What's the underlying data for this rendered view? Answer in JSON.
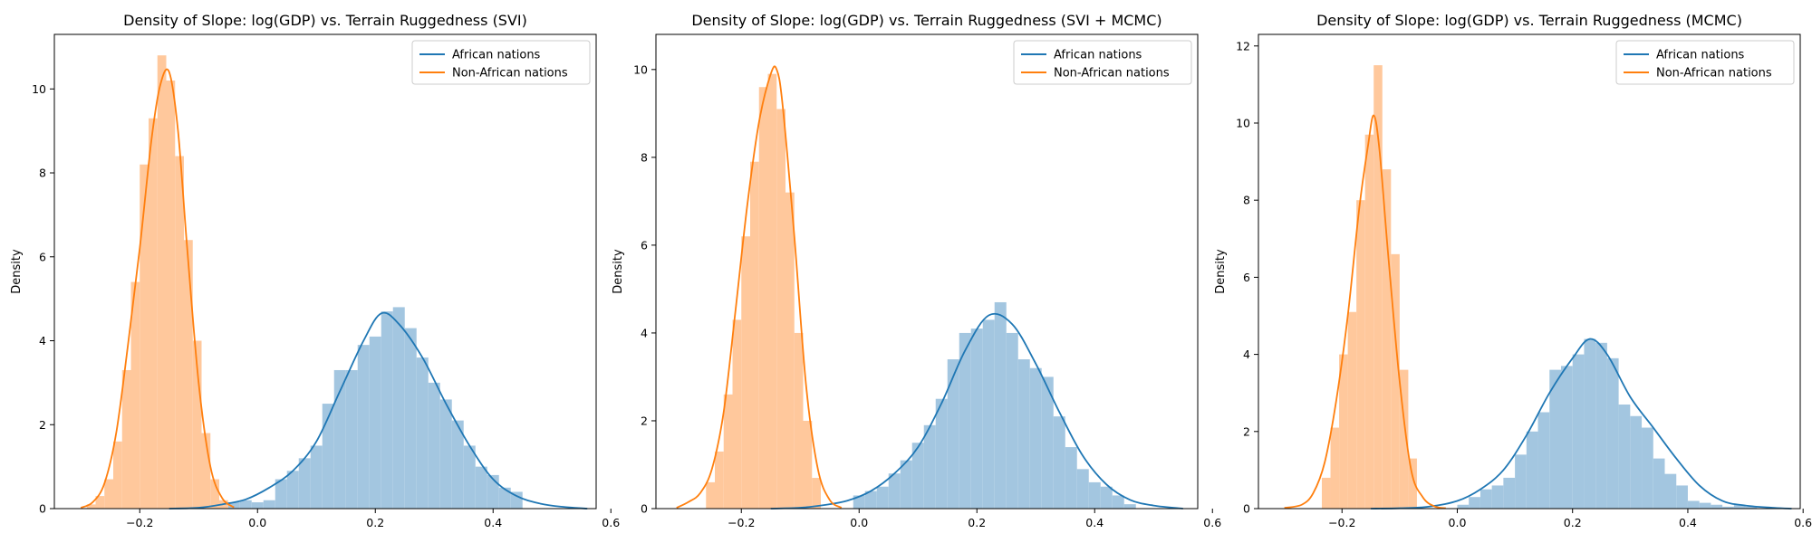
{
  "figure": {
    "colors": {
      "african": "#1f77b4",
      "african_hist": "#a3c6e0",
      "non_african": "#ff7f0e",
      "non_african_hist": "#ffc89c",
      "axes": "#000000"
    }
  },
  "chart_data": [
    {
      "type": "histogram",
      "title": "Density of Slope: log(GDP) vs. Terrain Ruggedness (SVI)",
      "xlabel": "",
      "ylabel": "Density",
      "xlim": [
        -0.345,
        0.575
      ],
      "ylim": [
        0,
        11.3
      ],
      "xticks": [
        -0.2,
        0.0,
        0.2,
        0.4,
        0.6
      ],
      "xtick_labels": [
        "−0.2",
        "0.0",
        "0.2",
        "0.4",
        "0.6"
      ],
      "yticks": [
        0,
        2,
        4,
        6,
        8,
        10
      ],
      "ytick_labels": [
        "0",
        "2",
        "4",
        "6",
        "8",
        "10"
      ],
      "legend": {
        "placement": "upper-right",
        "entries": [
          "African nations",
          "Non-African nations"
        ]
      },
      "series": [
        {
          "name": "African nations",
          "bin_edges": [
            -0.05,
            -0.03,
            -0.01,
            0.01,
            0.03,
            0.05,
            0.07,
            0.09,
            0.11,
            0.13,
            0.15,
            0.17,
            0.19,
            0.21,
            0.23,
            0.25,
            0.27,
            0.29,
            0.31,
            0.33,
            0.35,
            0.37,
            0.39,
            0.41,
            0.43,
            0.45
          ],
          "bin_values": [
            0.15,
            0.2,
            0.15,
            0.2,
            0.7,
            0.9,
            1.2,
            1.5,
            2.5,
            3.3,
            3.3,
            3.9,
            4.1,
            4.7,
            4.8,
            4.3,
            3.6,
            3.0,
            2.6,
            2.1,
            1.5,
            1.0,
            0.8,
            0.5,
            0.4
          ],
          "kde_x": [
            -0.15,
            -0.1,
            -0.06,
            -0.02,
            0.02,
            0.06,
            0.1,
            0.14,
            0.18,
            0.21,
            0.24,
            0.28,
            0.32,
            0.36,
            0.4,
            0.44,
            0.48,
            0.52,
            0.56
          ],
          "kde_y": [
            0.0,
            0.02,
            0.1,
            0.22,
            0.5,
            0.9,
            1.6,
            2.8,
            4.0,
            4.65,
            4.4,
            3.6,
            2.5,
            1.5,
            0.7,
            0.3,
            0.12,
            0.04,
            0.0
          ]
        },
        {
          "name": "Non-African nations",
          "bin_edges": [
            -0.29,
            -0.275,
            -0.26,
            -0.245,
            -0.23,
            -0.215,
            -0.2,
            -0.185,
            -0.17,
            -0.155,
            -0.14,
            -0.125,
            -0.11,
            -0.095,
            -0.08,
            -0.065,
            -0.05
          ],
          "bin_values": [
            0.1,
            0.3,
            0.7,
            1.6,
            3.3,
            5.4,
            8.2,
            9.3,
            10.8,
            10.2,
            8.4,
            6.4,
            4.0,
            1.8,
            0.7,
            0.2
          ],
          "kde_x": [
            -0.3,
            -0.28,
            -0.26,
            -0.24,
            -0.22,
            -0.2,
            -0.18,
            -0.165,
            -0.15,
            -0.135,
            -0.12,
            -0.1,
            -0.08,
            -0.06,
            -0.04
          ],
          "kde_y": [
            0.02,
            0.15,
            0.6,
            1.8,
            3.9,
            6.2,
            8.8,
            10.1,
            10.4,
            9.0,
            6.3,
            3.0,
            1.0,
            0.25,
            0.03
          ]
        }
      ]
    },
    {
      "type": "histogram",
      "title": "Density of Slope: log(GDP) vs. Terrain Ruggedness (SVI + MCMC)",
      "xlabel": "",
      "ylabel": "Density",
      "xlim": [
        -0.345,
        0.575
      ],
      "ylim": [
        0,
        10.8
      ],
      "xticks": [
        -0.2,
        0.0,
        0.2,
        0.4,
        0.6
      ],
      "xtick_labels": [
        "−0.2",
        "0.0",
        "0.2",
        "0.4",
        "0.6"
      ],
      "yticks": [
        0,
        2,
        4,
        6,
        8,
        10
      ],
      "ytick_labels": [
        "0",
        "2",
        "4",
        "6",
        "8",
        "10"
      ],
      "legend": {
        "placement": "upper-right",
        "entries": [
          "African nations",
          "Non-African nations"
        ]
      },
      "series": [
        {
          "name": "African nations",
          "bin_edges": [
            -0.01,
            0.01,
            0.03,
            0.05,
            0.07,
            0.09,
            0.11,
            0.13,
            0.15,
            0.17,
            0.19,
            0.21,
            0.23,
            0.25,
            0.27,
            0.29,
            0.31,
            0.33,
            0.35,
            0.37,
            0.39,
            0.41,
            0.43,
            0.45,
            0.47
          ],
          "bin_values": [
            0.3,
            0.4,
            0.5,
            0.8,
            1.1,
            1.5,
            1.9,
            2.5,
            3.4,
            4.0,
            4.1,
            4.3,
            4.7,
            4.0,
            3.4,
            3.2,
            3.0,
            2.1,
            1.4,
            0.9,
            0.6,
            0.5,
            0.3,
            0.1
          ],
          "kde_x": [
            -0.15,
            -0.1,
            -0.06,
            -0.02,
            0.02,
            0.06,
            0.1,
            0.14,
            0.18,
            0.22,
            0.26,
            0.3,
            0.34,
            0.38,
            0.42,
            0.46,
            0.5,
            0.55
          ],
          "kde_y": [
            0.0,
            0.02,
            0.08,
            0.18,
            0.4,
            0.8,
            1.4,
            2.4,
            3.6,
            4.4,
            4.2,
            3.3,
            2.2,
            1.2,
            0.55,
            0.2,
            0.07,
            0.0
          ]
        },
        {
          "name": "Non-African nations",
          "bin_edges": [
            -0.26,
            -0.245,
            -0.23,
            -0.215,
            -0.2,
            -0.185,
            -0.17,
            -0.155,
            -0.14,
            -0.125,
            -0.11,
            -0.095,
            -0.08,
            -0.065
          ],
          "bin_values": [
            0.6,
            1.3,
            2.6,
            4.3,
            6.2,
            7.9,
            9.6,
            9.9,
            9.1,
            7.2,
            4.0,
            2.0,
            0.7
          ],
          "kde_x": [
            -0.31,
            -0.29,
            -0.27,
            -0.25,
            -0.23,
            -0.21,
            -0.19,
            -0.17,
            -0.15,
            -0.14,
            -0.13,
            -0.11,
            -0.09,
            -0.07,
            -0.05,
            -0.03
          ],
          "kde_y": [
            0.02,
            0.15,
            0.35,
            0.9,
            2.2,
            4.5,
            6.9,
            8.8,
            9.9,
            10.0,
            9.2,
            6.2,
            2.8,
            0.9,
            0.2,
            0.02
          ]
        }
      ]
    },
    {
      "type": "histogram",
      "title": "Density of Slope: log(GDP) vs. Terrain Ruggedness (MCMC)",
      "xlabel": "",
      "ylabel": "Density",
      "xlim": [
        -0.345,
        0.595
      ],
      "ylim": [
        0,
        12.3
      ],
      "xticks": [
        -0.2,
        0.0,
        0.2,
        0.4,
        0.6
      ],
      "xtick_labels": [
        "−0.2",
        "0.0",
        "0.2",
        "0.4",
        "0.6"
      ],
      "yticks": [
        0,
        2,
        4,
        6,
        8,
        10,
        12
      ],
      "ytick_labels": [
        "0",
        "2",
        "4",
        "6",
        "8",
        "10",
        "12"
      ],
      "legend": {
        "placement": "upper-right",
        "entries": [
          "African nations",
          "Non-African nations"
        ]
      },
      "series": [
        {
          "name": "African nations",
          "bin_edges": [
            0.0,
            0.02,
            0.04,
            0.06,
            0.08,
            0.1,
            0.12,
            0.14,
            0.16,
            0.18,
            0.2,
            0.22,
            0.24,
            0.26,
            0.28,
            0.3,
            0.32,
            0.34,
            0.36,
            0.38,
            0.4,
            0.42,
            0.44,
            0.46,
            0.48,
            0.5,
            0.52
          ],
          "bin_values": [
            0.1,
            0.3,
            0.5,
            0.6,
            0.8,
            1.4,
            2.0,
            2.5,
            3.6,
            3.7,
            4.0,
            4.4,
            4.3,
            3.9,
            2.7,
            2.4,
            2.1,
            1.3,
            0.9,
            0.6,
            0.2,
            0.15,
            0.1,
            0.05,
            0.1,
            0.05
          ],
          "kde_x": [
            -0.15,
            -0.1,
            -0.05,
            0.0,
            0.04,
            0.08,
            0.12,
            0.16,
            0.2,
            0.23,
            0.26,
            0.3,
            0.34,
            0.38,
            0.42,
            0.46,
            0.5,
            0.55,
            0.58
          ],
          "kde_y": [
            0.0,
            0.01,
            0.05,
            0.2,
            0.5,
            1.0,
            1.9,
            3.0,
            3.9,
            4.4,
            4.0,
            2.9,
            2.1,
            1.3,
            0.6,
            0.2,
            0.08,
            0.02,
            0.0
          ]
        },
        {
          "name": "Non-African nations",
          "bin_edges": [
            -0.235,
            -0.22,
            -0.205,
            -0.19,
            -0.175,
            -0.16,
            -0.145,
            -0.13,
            -0.115,
            -0.1,
            -0.085,
            -0.07
          ],
          "bin_values": [
            0.8,
            2.1,
            4.0,
            5.1,
            8.0,
            9.7,
            11.5,
            8.8,
            6.6,
            3.6,
            1.3
          ],
          "kde_x": [
            -0.3,
            -0.27,
            -0.25,
            -0.23,
            -0.21,
            -0.19,
            -0.17,
            -0.155,
            -0.145,
            -0.135,
            -0.12,
            -0.1,
            -0.08,
            -0.06,
            -0.04,
            -0.02
          ],
          "kde_y": [
            0.02,
            0.1,
            0.4,
            1.2,
            2.8,
            5.0,
            7.8,
            9.4,
            10.2,
            9.3,
            6.6,
            3.3,
            1.0,
            0.3,
            0.06,
            0.01
          ]
        }
      ]
    }
  ]
}
